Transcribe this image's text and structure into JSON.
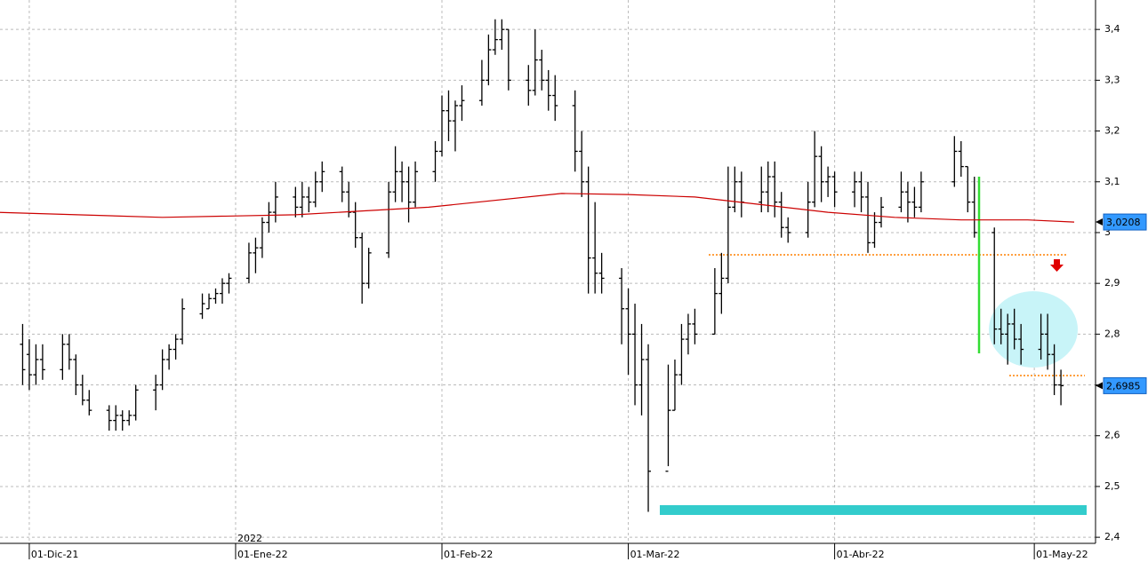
{
  "chart_data": {
    "type": "ohlc",
    "color": "#000000",
    "x": [
      -1,
      0,
      1,
      2,
      5,
      6,
      7,
      8,
      9,
      12,
      13,
      14,
      15,
      16,
      19,
      20,
      21,
      22,
      23,
      26,
      27,
      28,
      29,
      30,
      33,
      34,
      35,
      36,
      37,
      40,
      41,
      42,
      43,
      44,
      47,
      48,
      49,
      50,
      51,
      54,
      55,
      56,
      57,
      58,
      61,
      62,
      63,
      64,
      65,
      68,
      69,
      70,
      71,
      72,
      75,
      76,
      77,
      78,
      79,
      82,
      83,
      84,
      85,
      86,
      89,
      90,
      91,
      92,
      93,
      96,
      97,
      98,
      99,
      100,
      103,
      104,
      105,
      106,
      107,
      110,
      111,
      112,
      113,
      114,
      117,
      118,
      119,
      120,
      121,
      124,
      125,
      126,
      127,
      128,
      131,
      132,
      133,
      134,
      139,
      140,
      141,
      142,
      145,
      146,
      147,
      148,
      149,
      152,
      153,
      154,
      155
    ],
    "open": [
      2.78,
      2.76,
      2.72,
      2.75,
      2.73,
      2.78,
      2.75,
      2.7,
      2.67,
      2.65,
      2.63,
      2.64,
      2.63,
      2.64,
      2.69,
      2.7,
      2.75,
      2.77,
      2.79,
      2.84,
      2.85,
      2.87,
      2.88,
      2.9,
      2.91,
      2.96,
      2.97,
      3.02,
      3.04,
      3.07,
      3.05,
      3.07,
      3.06,
      3.1,
      3.12,
      3.08,
      3.04,
      2.99,
      2.9,
      2.96,
      3.08,
      3.12,
      3.1,
      3.06,
      3.12,
      3.16,
      3.24,
      3.22,
      3.25,
      3.26,
      3.3,
      3.36,
      3.38,
      3.4,
      3.3,
      3.28,
      3.34,
      3.3,
      3.27,
      3.25,
      3.16,
      3.1,
      2.95,
      2.92,
      2.91,
      2.85,
      2.8,
      2.7,
      2.75,
      2.53,
      2.65,
      2.72,
      2.79,
      2.82,
      2.8,
      2.88,
      2.91,
      3.05,
      3.1,
      3.06,
      3.08,
      3.11,
      3.06,
      3.01,
      3.0,
      3.06,
      3.15,
      3.1,
      3.11,
      3.08,
      3.1,
      3.07,
      2.98,
      3.02,
      3.05,
      3.08,
      3.06,
      3.05,
      3.1,
      3.16,
      3.13,
      3.06,
      3.0,
      2.81,
      2.8,
      2.82,
      2.79,
      2.77,
      2.8,
      2.76,
      2.7
    ],
    "high": [
      2.82,
      2.79,
      2.78,
      2.78,
      2.8,
      2.8,
      2.76,
      2.72,
      2.69,
      2.66,
      2.66,
      2.65,
      2.65,
      2.7,
      2.72,
      2.77,
      2.78,
      2.8,
      2.87,
      2.88,
      2.88,
      2.89,
      2.91,
      2.92,
      2.98,
      2.99,
      3.03,
      3.06,
      3.1,
      3.09,
      3.1,
      3.09,
      3.12,
      3.14,
      3.13,
      3.1,
      3.06,
      3.0,
      2.97,
      3.1,
      3.17,
      3.14,
      3.13,
      3.14,
      3.18,
      3.27,
      3.28,
      3.26,
      3.29,
      3.34,
      3.39,
      3.42,
      3.42,
      3.4,
      3.33,
      3.4,
      3.36,
      3.32,
      3.31,
      3.28,
      3.2,
      3.13,
      3.06,
      2.96,
      2.93,
      2.89,
      2.86,
      2.82,
      2.78,
      2.74,
      2.75,
      2.82,
      2.84,
      2.85,
      2.93,
      2.96,
      3.13,
      3.13,
      3.12,
      3.13,
      3.14,
      3.14,
      3.08,
      3.03,
      3.1,
      3.2,
      3.17,
      3.13,
      3.12,
      3.12,
      3.12,
      3.1,
      3.04,
      3.07,
      3.12,
      3.1,
      3.09,
      3.12,
      3.19,
      3.18,
      3.13,
      3.11,
      3.01,
      2.85,
      2.84,
      2.85,
      2.82,
      2.84,
      2.84,
      2.78,
      2.73
    ],
    "low": [
      2.7,
      2.69,
      2.7,
      2.71,
      2.71,
      2.73,
      2.68,
      2.66,
      2.64,
      2.61,
      2.61,
      2.61,
      2.62,
      2.63,
      2.65,
      2.69,
      2.73,
      2.75,
      2.78,
      2.83,
      2.85,
      2.86,
      2.86,
      2.88,
      2.9,
      2.92,
      2.95,
      3.0,
      3.02,
      3.03,
      3.03,
      3.04,
      3.05,
      3.08,
      3.06,
      3.03,
      2.97,
      2.86,
      2.89,
      2.95,
      3.06,
      3.06,
      3.02,
      3.05,
      3.1,
      3.15,
      3.18,
      3.16,
      3.22,
      3.25,
      3.29,
      3.35,
      3.36,
      3.28,
      3.25,
      3.27,
      3.28,
      3.24,
      3.22,
      3.12,
      3.07,
      2.88,
      2.88,
      2.88,
      2.78,
      2.72,
      2.66,
      2.64,
      2.45,
      2.54,
      2.65,
      2.7,
      2.76,
      2.78,
      2.8,
      2.84,
      2.9,
      3.04,
      3.03,
      3.04,
      3.04,
      3.03,
      2.99,
      2.98,
      2.99,
      3.05,
      3.06,
      3.07,
      3.05,
      3.05,
      3.04,
      2.96,
      2.97,
      3.01,
      3.04,
      3.02,
      3.03,
      3.04,
      3.09,
      3.11,
      3.04,
      2.99,
      2.78,
      2.78,
      2.74,
      2.77,
      2.74,
      2.75,
      2.73,
      2.68,
      2.66
    ],
    "close": [
      2.73,
      2.72,
      2.75,
      2.73,
      2.78,
      2.75,
      2.7,
      2.67,
      2.65,
      2.63,
      2.64,
      2.63,
      2.64,
      2.69,
      2.7,
      2.75,
      2.77,
      2.79,
      2.85,
      2.86,
      2.87,
      2.88,
      2.9,
      2.91,
      2.96,
      2.97,
      3.02,
      3.04,
      3.07,
      3.05,
      3.07,
      3.06,
      3.1,
      3.12,
      3.08,
      3.04,
      2.99,
      2.9,
      2.96,
      3.08,
      3.12,
      3.1,
      3.06,
      3.12,
      3.16,
      3.24,
      3.22,
      3.25,
      3.26,
      3.3,
      3.36,
      3.38,
      3.4,
      3.3,
      3.28,
      3.34,
      3.3,
      3.27,
      3.25,
      3.16,
      3.1,
      2.95,
      2.92,
      2.91,
      2.85,
      2.8,
      2.7,
      2.75,
      2.53,
      2.65,
      2.72,
      2.79,
      2.82,
      2.8,
      2.88,
      2.91,
      3.05,
      3.1,
      3.06,
      3.08,
      3.11,
      3.06,
      3.01,
      3.0,
      3.06,
      3.15,
      3.1,
      3.11,
      3.08,
      3.1,
      3.07,
      2.98,
      3.02,
      3.05,
      3.08,
      3.06,
      3.05,
      3.1,
      3.16,
      3.13,
      3.06,
      3.0,
      2.81,
      2.8,
      2.82,
      2.79,
      2.77,
      2.8,
      2.76,
      2.7,
      2.6985
    ],
    "ma": {
      "color": "#cc0000",
      "x": [
        -5,
        20,
        40,
        60,
        80,
        90,
        100,
        110,
        120,
        130,
        140,
        150,
        157
      ],
      "values": [
        3.04,
        3.03,
        3.035,
        3.05,
        3.077,
        3.075,
        3.07,
        3.055,
        3.04,
        3.03,
        3.025,
        3.025,
        3.0208
      ]
    },
    "price_labels": [
      {
        "value": 3.0208,
        "label": "3,0208"
      },
      {
        "value": 2.6985,
        "label": "2,6985"
      }
    ],
    "xlim": [
      -4.4,
      160.2
    ],
    "xticks": [
      {
        "value": 0,
        "label": "01-Dic-21"
      },
      {
        "value": 31,
        "label": "01-Ene-22"
      },
      {
        "value": 62,
        "label": "01-Feb-22"
      },
      {
        "value": 90,
        "label": "01-Mar-22"
      },
      {
        "value": 121,
        "label": "01-Abr-22"
      },
      {
        "value": 151,
        "label": "01-May-22"
      }
    ],
    "year_label": "2022",
    "ylim": [
      2.388,
      3.458
    ],
    "yticks": [
      {
        "value": 2.4,
        "label": "2,4"
      },
      {
        "value": 2.5,
        "label": "2,5"
      },
      {
        "value": 2.6,
        "label": "2,6"
      },
      {
        "value": 2.7,
        "label": "2,7"
      },
      {
        "value": 2.8,
        "label": "2,8"
      },
      {
        "value": 2.9,
        "label": "2,9"
      },
      3,
      {
        "value": 3.1,
        "label": "3,1"
      },
      {
        "value": 3.2,
        "label": "3,2"
      },
      {
        "value": 3.3,
        "label": "3,3"
      },
      {
        "value": 3.4,
        "label": "3,4"
      }
    ],
    "grid": true
  }
}
